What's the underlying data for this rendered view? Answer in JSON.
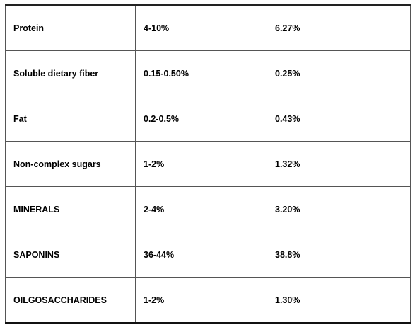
{
  "table": {
    "rows": [
      [
        "Protein",
        "4-10%",
        "6.27%"
      ],
      [
        "Soluble dietary fiber",
        "0.15-0.50%",
        "0.25%"
      ],
      [
        "Fat",
        "0.2-0.5%",
        "0.43%"
      ],
      [
        "Non-complex sugars",
        "1-2%",
        "1.32%"
      ],
      [
        "MINERALS",
        "2-4%",
        "3.20%"
      ],
      [
        "SAPONINS",
        "36-44%",
        "38.8%"
      ],
      [
        "OILGOSACCHARIDES",
        "1-2%",
        "1.30%"
      ]
    ]
  }
}
